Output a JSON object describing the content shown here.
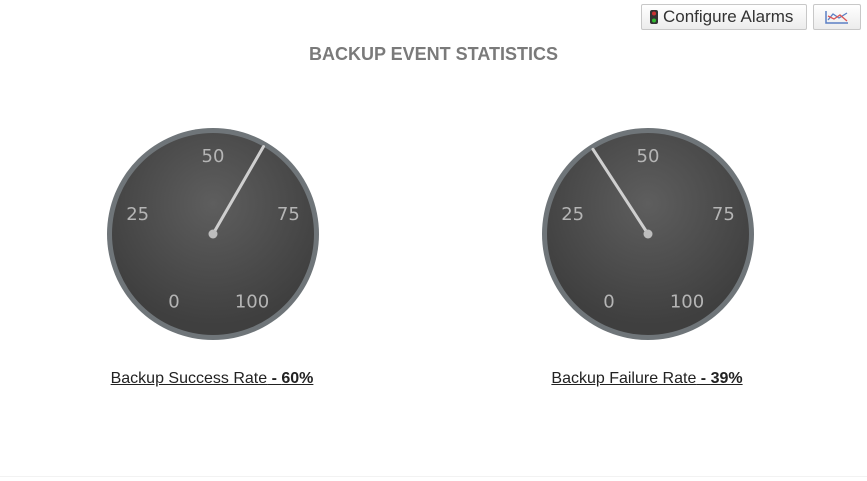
{
  "toolbar": {
    "configure_alarms_label": "Configure Alarms",
    "alarm_icon": "traffic-light-icon",
    "chart_icon": "line-chart-icon"
  },
  "title": "BACKUP EVENT STATISTICS",
  "gauges": [
    {
      "label": "Backup Success Rate",
      "sep": " - ",
      "value_text": "60%",
      "value": 60,
      "min": 0,
      "max": 100,
      "ticks": [
        "0",
        "25",
        "50",
        "75",
        "100"
      ]
    },
    {
      "label": "Backup Failure Rate",
      "sep": " - ",
      "value_text": "39%",
      "value": 39,
      "min": 0,
      "max": 100,
      "ticks": [
        "0",
        "25",
        "50",
        "75",
        "100"
      ]
    }
  ],
  "colors": {
    "dial": "#3f3f3f",
    "rim": "#6f7579",
    "needle": "#cfcfcf",
    "tick_text": "#b5b5b5"
  }
}
